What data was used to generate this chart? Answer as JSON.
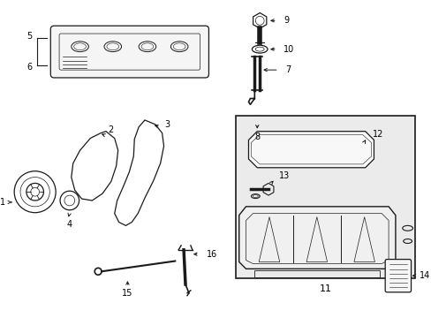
{
  "background": "#ffffff",
  "line_color": "#1a1a1a",
  "label_color": "#000000",
  "fig_width": 4.89,
  "fig_height": 3.6,
  "dpi": 100,
  "box_bg": "#ebebeb"
}
